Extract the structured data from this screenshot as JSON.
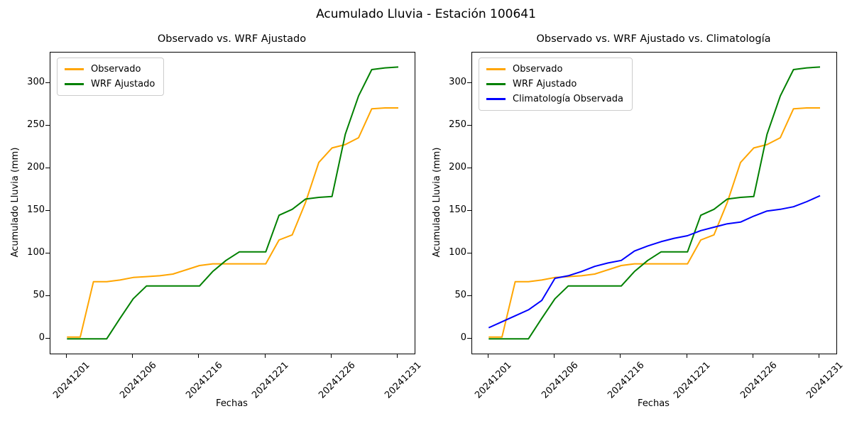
{
  "figure_title": "Acumulado Lluvia - Estación 100641",
  "colors": {
    "observado": "#FFA500",
    "wrf_ajustado": "#008000",
    "climatologia": "#0000FF"
  },
  "chart_data": [
    {
      "type": "line",
      "title": "Observado vs. WRF Ajustado",
      "xlabel": "Fechas",
      "ylabel": "Acumulado Lluvia (mm)",
      "x_tick_labels": [
        "20241201",
        "20241206",
        "20241216",
        "20241221",
        "20241226",
        "20241231"
      ],
      "x_tick_positions": [
        0,
        5,
        10,
        15,
        20,
        25
      ],
      "y_ticks": [
        0,
        50,
        100,
        150,
        200,
        250,
        300
      ],
      "ylim": [
        -17,
        336
      ],
      "n_points": 26,
      "grid": false,
      "legend_position": "upper left",
      "series": [
        {
          "name": "Observado",
          "color": "#FFA500",
          "values": [
            2,
            2,
            67,
            67,
            69,
            72,
            73,
            74,
            76,
            81,
            86,
            88,
            88,
            88,
            88,
            88,
            116,
            122,
            160,
            207,
            224,
            228,
            236,
            270,
            271,
            271
          ]
        },
        {
          "name": "WRF Ajustado",
          "color": "#008000",
          "values": [
            0,
            0,
            0,
            0,
            24,
            47,
            62,
            62,
            62,
            62,
            62,
            79,
            92,
            102,
            102,
            102,
            145,
            152,
            164,
            166,
            167,
            240,
            285,
            316,
            318,
            319
          ]
        }
      ]
    },
    {
      "type": "line",
      "title": "Observado vs. WRF Ajustado vs. Climatología",
      "xlabel": "Fechas",
      "ylabel": "Acumulado Lluvia (mm)",
      "x_tick_labels": [
        "20241201",
        "20241206",
        "20241216",
        "20241221",
        "20241226",
        "20241231"
      ],
      "x_tick_positions": [
        0,
        5,
        10,
        15,
        20,
        25
      ],
      "y_ticks": [
        0,
        50,
        100,
        150,
        200,
        250,
        300
      ],
      "ylim": [
        -17,
        336
      ],
      "n_points": 26,
      "grid": false,
      "legend_position": "upper left",
      "series": [
        {
          "name": "Observado",
          "color": "#FFA500",
          "values": [
            2,
            2,
            67,
            67,
            69,
            72,
            73,
            74,
            76,
            81,
            86,
            88,
            88,
            88,
            88,
            88,
            116,
            122,
            160,
            207,
            224,
            228,
            236,
            270,
            271,
            271
          ]
        },
        {
          "name": "WRF Ajustado",
          "color": "#008000",
          "values": [
            0,
            0,
            0,
            0,
            24,
            47,
            62,
            62,
            62,
            62,
            62,
            79,
            92,
            102,
            102,
            102,
            145,
            152,
            164,
            166,
            167,
            240,
            285,
            316,
            318,
            319
          ]
        },
        {
          "name": "Climatología Observada",
          "color": "#0000FF",
          "values": [
            13,
            20,
            27,
            34,
            45,
            71,
            74,
            79,
            85,
            89,
            92,
            103,
            109,
            114,
            118,
            121,
            127,
            131,
            135,
            137,
            144,
            150,
            152,
            155,
            161,
            168
          ]
        }
      ]
    }
  ]
}
